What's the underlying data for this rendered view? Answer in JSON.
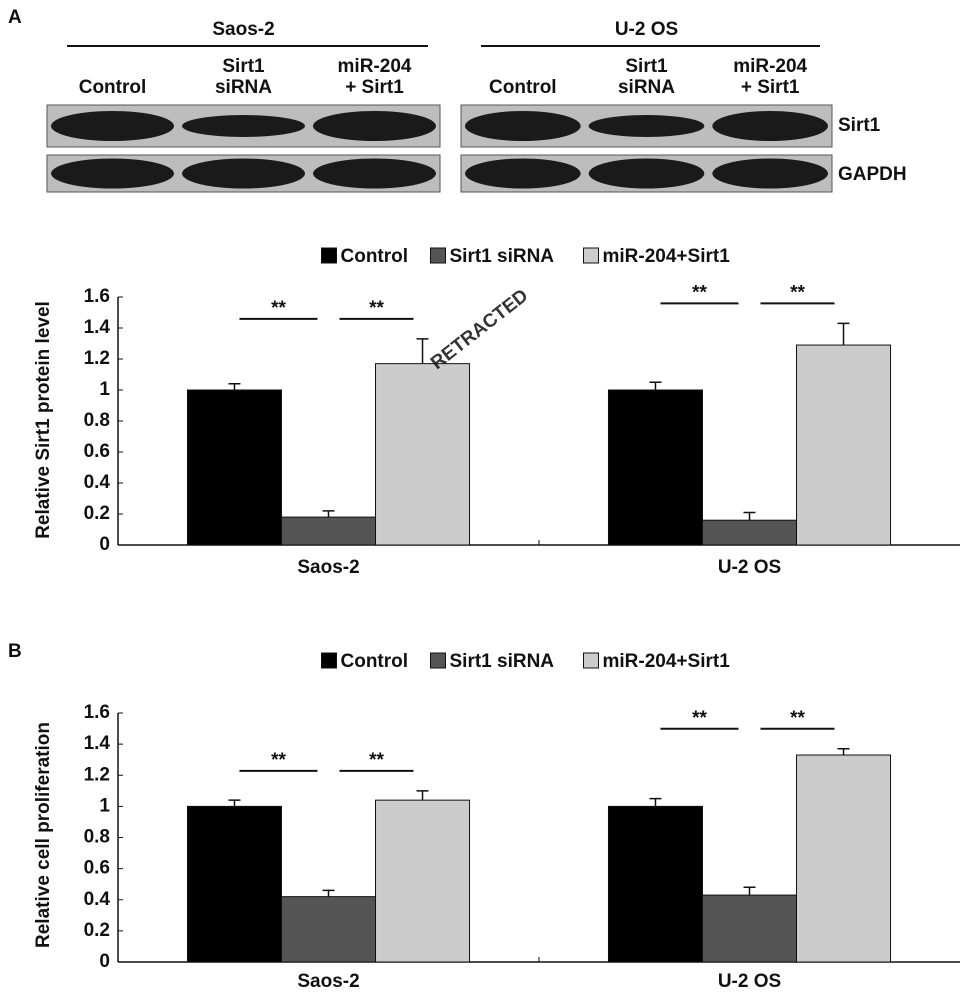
{
  "panel_labels": [
    "A",
    "B"
  ],
  "blot": {
    "groups": [
      {
        "title": "Saos-2",
        "lanes": [
          [
            "Control"
          ],
          [
            "Sirt1",
            "siRNA"
          ],
          [
            "miR-204",
            "+ Sirt1"
          ]
        ]
      },
      {
        "title": "U-2 OS",
        "lanes": [
          [
            "Control"
          ],
          [
            "Sirt1",
            "siRNA"
          ],
          [
            "miR-204",
            "+ Sirt1"
          ]
        ]
      }
    ],
    "rows": [
      "Sirt1",
      "GAPDH"
    ]
  },
  "watermark": "RETRACTED",
  "chart_data": [
    {
      "type": "bar",
      "y_label": "Relative Sirt1 protein level",
      "categories": [
        "Saos-2",
        "U-2 OS"
      ],
      "series": [
        {
          "name": "Control",
          "color": "#000000",
          "values": [
            1.0,
            1.0
          ],
          "errors": [
            0.04,
            0.05
          ]
        },
        {
          "name": "Sirt1 siRNA",
          "color": "#555555",
          "values": [
            0.18,
            0.16
          ],
          "errors": [
            0.04,
            0.05
          ]
        },
        {
          "name": "miR-204+Sirt1",
          "color": "#cccccc",
          "values": [
            1.17,
            1.29
          ],
          "errors": [
            0.16,
            0.14
          ]
        }
      ],
      "annotations": [
        {
          "text": "**",
          "category": 0,
          "pair": [
            0,
            1
          ]
        },
        {
          "text": "**",
          "category": 0,
          "pair": [
            1,
            2
          ]
        },
        {
          "text": "**",
          "category": 1,
          "pair": [
            0,
            1
          ]
        },
        {
          "text": "**",
          "category": 1,
          "pair": [
            1,
            2
          ]
        }
      ],
      "ylim": [
        0,
        1.6
      ],
      "yticks": [
        0,
        0.2,
        0.4,
        0.6,
        0.8,
        1,
        1.2,
        1.4,
        1.6
      ],
      "grid": false
    },
    {
      "type": "bar",
      "y_label": "Relative cell proliferation",
      "categories": [
        "Saos-2",
        "U-2 OS"
      ],
      "series": [
        {
          "name": "Control",
          "color": "#000000",
          "values": [
            1.0,
            1.0
          ],
          "errors": [
            0.04,
            0.05
          ]
        },
        {
          "name": "Sirt1 siRNA",
          "color": "#555555",
          "values": [
            0.42,
            0.43
          ],
          "errors": [
            0.04,
            0.05
          ]
        },
        {
          "name": "miR-204+Sirt1",
          "color": "#cccccc",
          "values": [
            1.04,
            1.33
          ],
          "errors": [
            0.06,
            0.04
          ]
        }
      ],
      "annotations": [
        {
          "text": "**",
          "category": 0,
          "pair": [
            0,
            1
          ]
        },
        {
          "text": "**",
          "category": 0,
          "pair": [
            1,
            2
          ]
        },
        {
          "text": "**",
          "category": 1,
          "pair": [
            0,
            1
          ]
        },
        {
          "text": "**",
          "category": 1,
          "pair": [
            1,
            2
          ]
        }
      ],
      "ylim": [
        0,
        1.6
      ],
      "yticks": [
        0,
        0.2,
        0.4,
        0.6,
        0.8,
        1,
        1.2,
        1.4,
        1.6
      ],
      "grid": false
    }
  ]
}
